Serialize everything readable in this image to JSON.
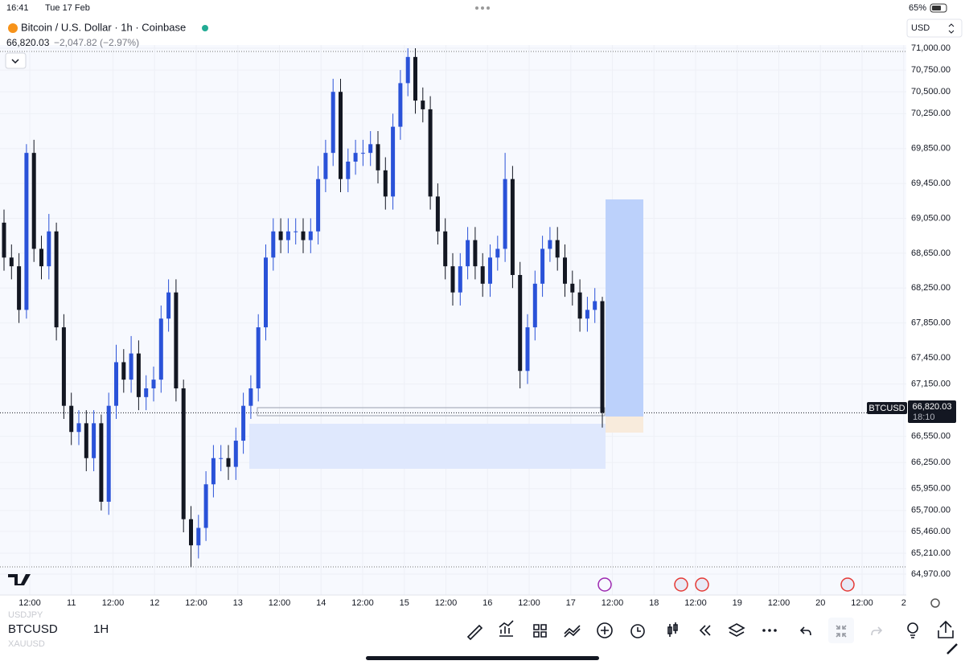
{
  "status_bar": {
    "time": "16:41",
    "date": "Tue 17 Feb",
    "battery": "65%"
  },
  "header": {
    "title": "Bitcoin / U.S. Dollar · 1h · Coinbase",
    "price": "66,820.03",
    "change": "−2,047.82 (−2.97%)"
  },
  "currency": "USD",
  "price_label": {
    "symbol": "BTCUSD",
    "price": {
      "value": 66820.03,
      "label": "66,820.03"
    },
    "countdown": "18:10"
  },
  "toolbar": {
    "faded_top": "USDJPY",
    "symbol": "BTCUSD",
    "faded_bottom": "XAUUSD",
    "interval": "1H"
  },
  "chart_data": {
    "type": "candlestick",
    "up_color": "#2a52d8",
    "down_color": "#131722",
    "ylim": [
      64970,
      71000
    ],
    "yticks": [
      {
        "value": 71000,
        "label": "71,000.00"
      },
      {
        "value": 70750,
        "label": "70,750.00"
      },
      {
        "value": 70500,
        "label": "70,500.00"
      },
      {
        "value": 70250,
        "label": "70,250.00"
      },
      {
        "value": 69850,
        "label": "69,850.00"
      },
      {
        "value": 69450,
        "label": "69,450.00"
      },
      {
        "value": 69050,
        "label": "69,050.00"
      },
      {
        "value": 68650,
        "label": "68,650.00"
      },
      {
        "value": 68250,
        "label": "68,250.00"
      },
      {
        "value": 67850,
        "label": "67,850.00"
      },
      {
        "value": 67450,
        "label": "67,450.00"
      },
      {
        "value": 67150,
        "label": "67,150.00"
      },
      {
        "value": 66550,
        "label": "66,550.00"
      },
      {
        "value": 66250,
        "label": "66,250.00"
      },
      {
        "value": 65950,
        "label": "65,950.00"
      },
      {
        "value": 65700,
        "label": "65,700.00"
      },
      {
        "value": 65460,
        "label": "65,460.00"
      },
      {
        "value": 65210,
        "label": "65,210.00"
      },
      {
        "value": 64970,
        "label": "64,970.00"
      }
    ],
    "x_labels": [
      "12:00",
      "11",
      "12:00",
      "12",
      "12:00",
      "13",
      "12:00",
      "14",
      "12:00",
      "15",
      "12:00",
      "16",
      "12:00",
      "17",
      "12:00",
      "18",
      "12:00",
      "19",
      "12:00",
      "20",
      "12:00",
      "2"
    ],
    "open": [
      69000,
      68600,
      68500,
      68000,
      69800,
      68700,
      68500,
      68900,
      67800,
      66900,
      66600,
      66700,
      66300,
      66700,
      65800,
      66900,
      67400,
      67200,
      67500,
      67000,
      67100,
      67200,
      67900,
      68200,
      67100,
      65600,
      65300,
      65500,
      66000,
      66300,
      66300,
      66200,
      66500,
      66900,
      67100,
      67800,
      68600,
      68900,
      68800,
      68900,
      68900,
      68800,
      68900,
      69500,
      69800,
      70500,
      69500,
      69700,
      69800,
      69800,
      69900,
      69600,
      69300,
      70100,
      70600,
      70900,
      70400,
      70300,
      69300,
      68900,
      68500,
      68200,
      68500,
      68800,
      68500,
      68300,
      68600,
      68700,
      69500,
      68400,
      67300,
      67800,
      68300,
      68700,
      68800,
      68600,
      68300,
      68200,
      67900,
      68000,
      68100
    ],
    "high": [
      69150,
      68750,
      68650,
      69900,
      69950,
      68850,
      69100,
      69000,
      67950,
      67050,
      66850,
      66850,
      66850,
      66800,
      67050,
      67600,
      67550,
      67700,
      67650,
      67250,
      67350,
      68050,
      68350,
      68350,
      67200,
      65750,
      65650,
      66150,
      66450,
      66450,
      66450,
      66650,
      67050,
      67250,
      67950,
      68750,
      69050,
      69050,
      69050,
      69050,
      69050,
      69050,
      69650,
      69950,
      70650,
      70650,
      69850,
      69950,
      69950,
      70050,
      70050,
      69750,
      70250,
      70750,
      71000,
      71000,
      70550,
      70450,
      69450,
      69050,
      68650,
      68650,
      68950,
      68950,
      68650,
      68750,
      68850,
      69800,
      69650,
      68550,
      67950,
      68450,
      68850,
      68950,
      68950,
      68750,
      68450,
      68350,
      68150,
      68250,
      68150
    ],
    "low": [
      68450,
      68350,
      67850,
      67900,
      68550,
      68350,
      68350,
      67650,
      66750,
      66450,
      66450,
      66150,
      66150,
      65700,
      65650,
      66750,
      67050,
      67050,
      66850,
      66850,
      66950,
      67050,
      67750,
      66950,
      65450,
      65050,
      65150,
      65350,
      65850,
      66150,
      66050,
      66050,
      66350,
      66750,
      66950,
      67650,
      68450,
      68650,
      68650,
      68750,
      68650,
      68650,
      68750,
      69350,
      69650,
      69350,
      69350,
      69550,
      69650,
      69650,
      69450,
      69150,
      69150,
      69950,
      70450,
      70250,
      70150,
      69150,
      68750,
      68350,
      68050,
      68050,
      68350,
      68350,
      68150,
      68150,
      68450,
      68550,
      68250,
      67100,
      67150,
      67650,
      68150,
      68550,
      68450,
      68150,
      68050,
      67750,
      67750,
      67850,
      66650
    ],
    "close": [
      68600,
      68500,
      68000,
      69800,
      68700,
      68500,
      68900,
      67800,
      66900,
      66600,
      66700,
      66300,
      66700,
      65800,
      66900,
      67400,
      67200,
      67500,
      67000,
      67100,
      67200,
      67900,
      68200,
      67100,
      65600,
      65300,
      65500,
      66000,
      66300,
      66300,
      66200,
      66500,
      66900,
      67100,
      67800,
      68600,
      68900,
      68800,
      68900,
      68900,
      68800,
      68900,
      69500,
      69800,
      70500,
      69500,
      69700,
      69800,
      69800,
      69900,
      69600,
      69300,
      70100,
      70600,
      70900,
      70400,
      70300,
      69300,
      68900,
      68500,
      68200,
      68500,
      68800,
      68500,
      68300,
      68600,
      68700,
      69500,
      68400,
      67300,
      67800,
      68300,
      68700,
      68800,
      68600,
      68300,
      68200,
      67900,
      68000,
      68100,
      66820.03
    ]
  }
}
